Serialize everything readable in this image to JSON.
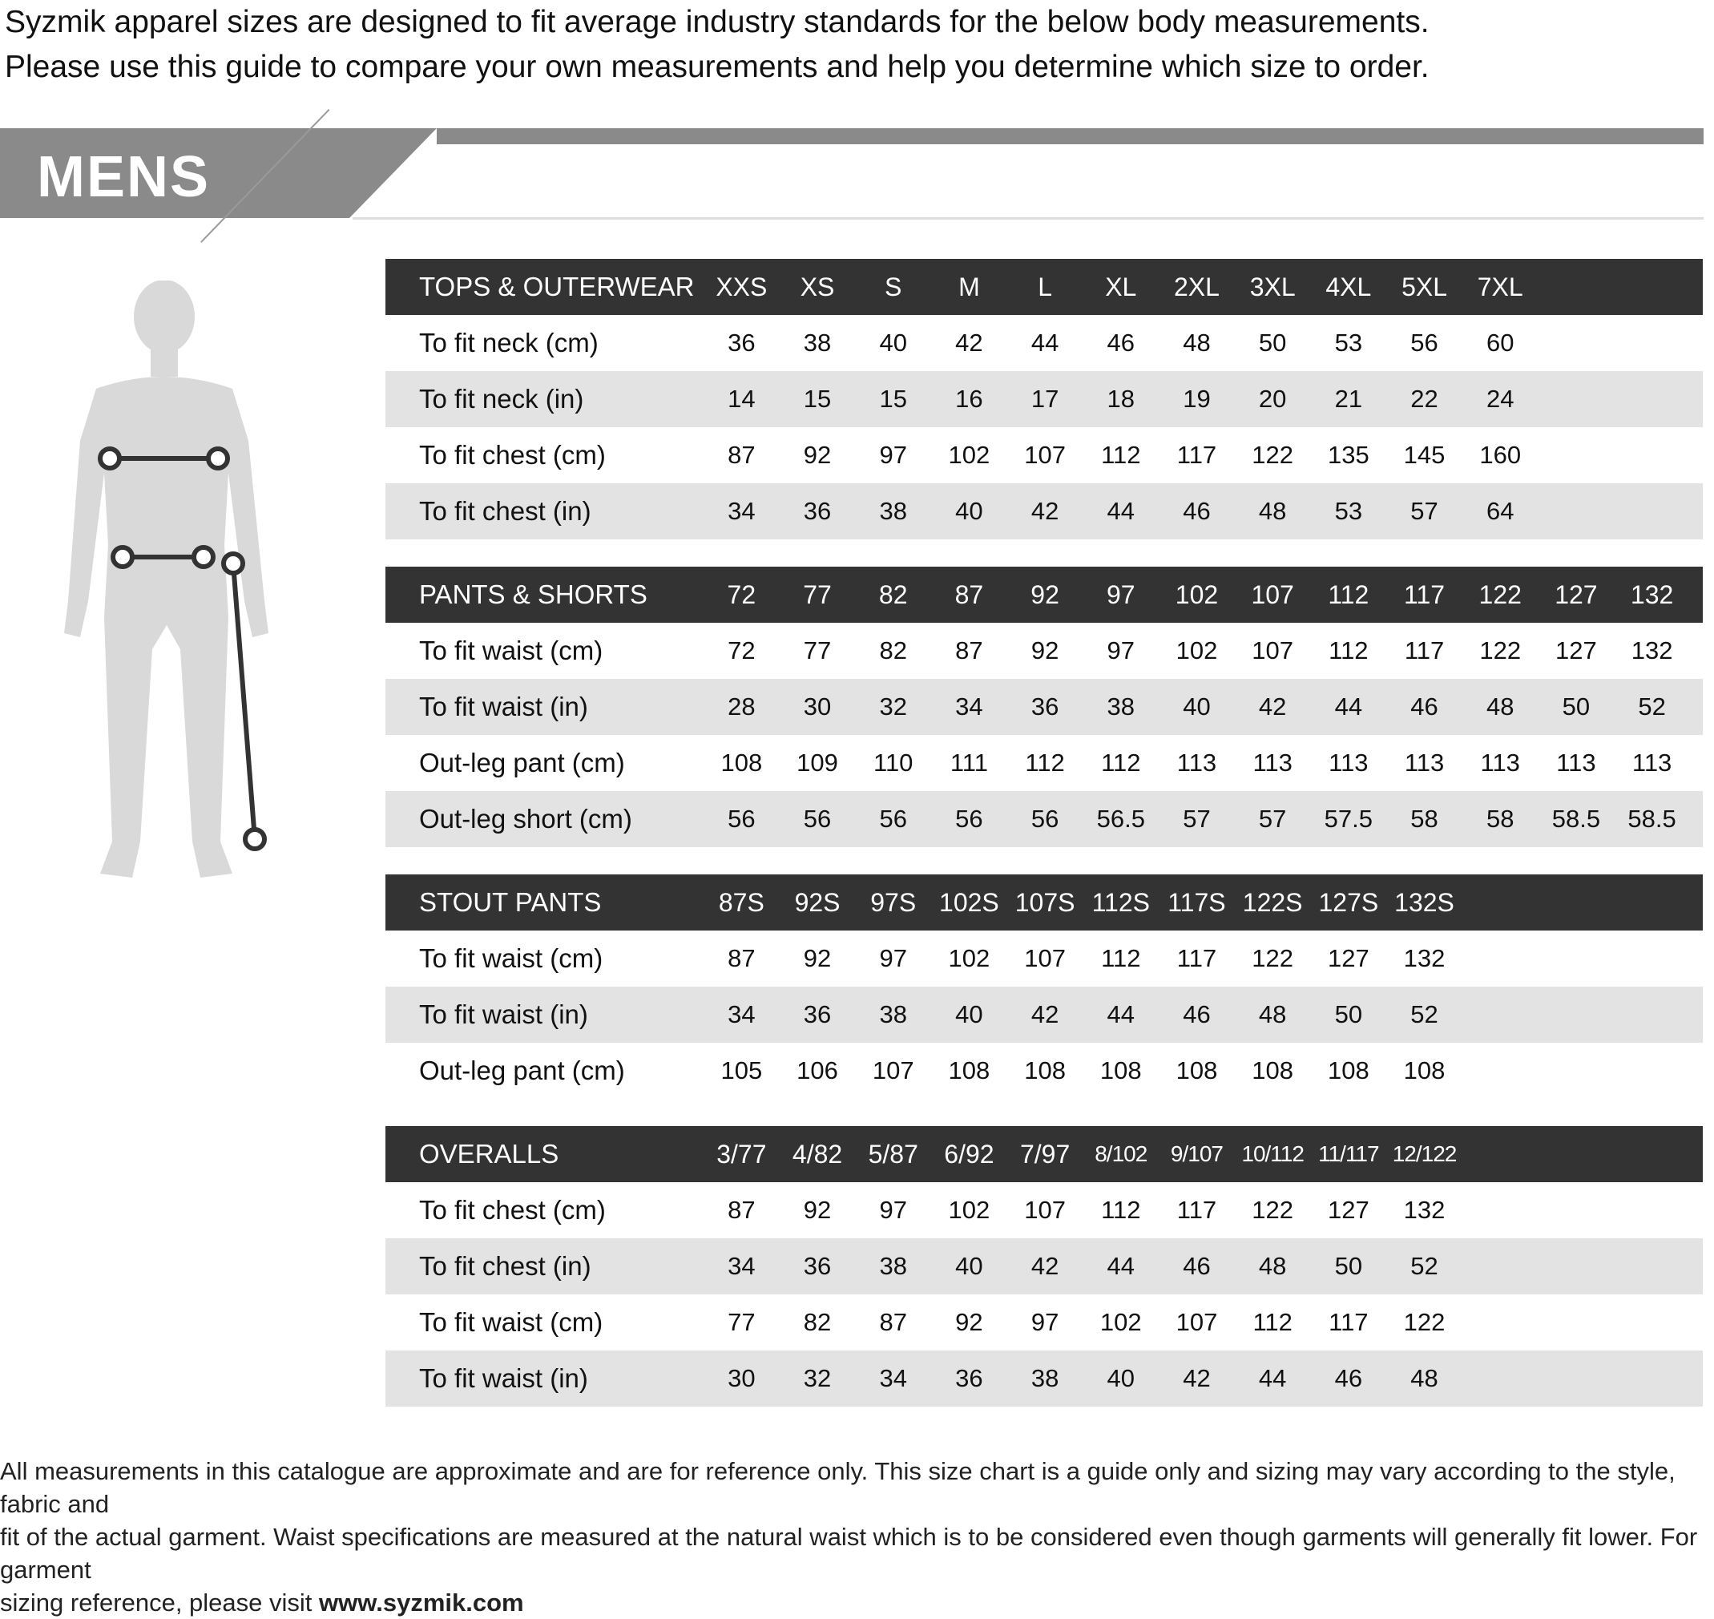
{
  "intro": {
    "line1": "Syzmik apparel sizes are designed to fit average industry standards for the below body measurements.",
    "line2": "Please use this guide to compare your own measurements and help you determine which size to order."
  },
  "banner": {
    "title": "MENS"
  },
  "colors": {
    "header_bg": "#333333",
    "alt_row": "#e3e3e3",
    "banner": "#8a8a8a"
  },
  "tables": [
    {
      "title": "TOPS & OUTERWEAR",
      "sizes": [
        "XXS",
        "XS",
        "S",
        "M",
        "L",
        "XL",
        "2XL",
        "3XL",
        "4XL",
        "5XL",
        "7XL"
      ],
      "rows": [
        {
          "label": "To fit neck (cm)",
          "values": [
            "36",
            "38",
            "40",
            "42",
            "44",
            "46",
            "48",
            "50",
            "53",
            "56",
            "60"
          ]
        },
        {
          "label": "To fit neck (in)",
          "values": [
            "14",
            "15",
            "15",
            "16",
            "17",
            "18",
            "19",
            "20",
            "21",
            "22",
            "24"
          ]
        },
        {
          "label": "To fit chest (cm)",
          "values": [
            "87",
            "92",
            "97",
            "102",
            "107",
            "112",
            "117",
            "122",
            "135",
            "145",
            "160"
          ]
        },
        {
          "label": "To fit chest (in)",
          "values": [
            "34",
            "36",
            "38",
            "40",
            "42",
            "44",
            "46",
            "48",
            "53",
            "57",
            "64"
          ]
        }
      ]
    },
    {
      "title": "PANTS & SHORTS",
      "sizes": [
        "72",
        "77",
        "82",
        "87",
        "92",
        "97",
        "102",
        "107",
        "112",
        "117",
        "122",
        "127",
        "132"
      ],
      "rows": [
        {
          "label": "To fit waist (cm)",
          "values": [
            "72",
            "77",
            "82",
            "87",
            "92",
            "97",
            "102",
            "107",
            "112",
            "117",
            "122",
            "127",
            "132"
          ]
        },
        {
          "label": "To fit waist (in)",
          "values": [
            "28",
            "30",
            "32",
            "34",
            "36",
            "38",
            "40",
            "42",
            "44",
            "46",
            "48",
            "50",
            "52"
          ]
        },
        {
          "label": "Out-leg pant (cm)",
          "values": [
            "108",
            "109",
            "110",
            "111",
            "112",
            "112",
            "113",
            "113",
            "113",
            "113",
            "113",
            "113",
            "113"
          ]
        },
        {
          "label": "Out-leg short (cm)",
          "values": [
            "56",
            "56",
            "56",
            "56",
            "56",
            "56.5",
            "57",
            "57",
            "57.5",
            "58",
            "58",
            "58.5",
            "58.5"
          ]
        }
      ]
    },
    {
      "title": "STOUT PANTS",
      "sizes": [
        "87S",
        "92S",
        "97S",
        "102S",
        "107S",
        "112S",
        "117S",
        "122S",
        "127S",
        "132S"
      ],
      "rows": [
        {
          "label": "To fit waist (cm)",
          "values": [
            "87",
            "92",
            "97",
            "102",
            "107",
            "112",
            "117",
            "122",
            "127",
            "132"
          ]
        },
        {
          "label": "To fit waist (in)",
          "values": [
            "34",
            "36",
            "38",
            "40",
            "42",
            "44",
            "46",
            "48",
            "50",
            "52"
          ]
        },
        {
          "label": "Out-leg pant (cm)",
          "values": [
            "105",
            "106",
            "107",
            "108",
            "108",
            "108",
            "108",
            "108",
            "108",
            "108"
          ]
        }
      ]
    },
    {
      "title": "OVERALLS",
      "sizes": [
        "3/77",
        "4/82",
        "5/87",
        "6/92",
        "7/97",
        "8/102",
        "9/107",
        "10/112",
        "11/117",
        "12/122"
      ],
      "rows": [
        {
          "label": "To fit chest (cm)",
          "values": [
            "87",
            "92",
            "97",
            "102",
            "107",
            "112",
            "117",
            "122",
            "127",
            "132"
          ]
        },
        {
          "label": "To fit chest (in)",
          "values": [
            "34",
            "36",
            "38",
            "40",
            "42",
            "44",
            "46",
            "48",
            "50",
            "52"
          ]
        },
        {
          "label": "To fit waist (cm)",
          "values": [
            "77",
            "82",
            "87",
            "92",
            "97",
            "102",
            "107",
            "112",
            "117",
            "122"
          ]
        },
        {
          "label": "To fit waist (in)",
          "values": [
            "30",
            "32",
            "34",
            "36",
            "38",
            "40",
            "42",
            "44",
            "46",
            "48"
          ]
        }
      ]
    }
  ],
  "footer": {
    "line1": "All measurements in this catalogue are approximate and are for reference only. This size chart is a guide only and sizing may vary according to the style, fabric and",
    "line2": "fit of the actual garment. Waist specifications are measured at the natural waist which is to be considered even though garments will generally fit lower. For garment",
    "line3_prefix": "sizing reference, please visit ",
    "link": "www.syzmik.com"
  }
}
